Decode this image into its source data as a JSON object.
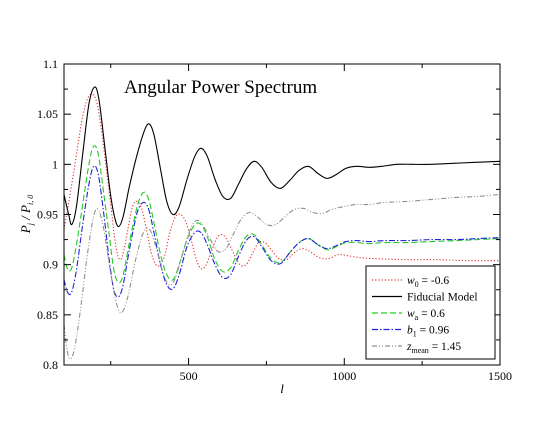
{
  "chart_data": {
    "type": "line",
    "title": "Angular Power Spectrum",
    "xlabel": "l",
    "ylabel": {
      "main": "P",
      "sub1": "j",
      "sep": " / ",
      "main2": "P",
      "sub2": "i, 0"
    },
    "xlim": [
      100,
      1500
    ],
    "ylim": [
      0.8,
      1.1
    ],
    "xticks": [
      500,
      1000,
      1500
    ],
    "yticks": [
      0.8,
      0.85,
      0.9,
      0.95,
      1,
      1.05,
      1.1
    ],
    "ytick_labels": [
      "0.8",
      "0.85",
      "0.9",
      "0.95",
      "1",
      "1.05",
      "1.1"
    ],
    "xtick_labels": [
      "500",
      "1000",
      "1500"
    ],
    "grid": false,
    "legend_position": "bottom-right",
    "series": [
      {
        "legend": {
          "sym": "w",
          "sub": "0",
          "rest": " = -0.6"
        },
        "color": "#e03030",
        "dash": "1.2,2",
        "points": [
          [
            100,
            0.935
          ],
          [
            115,
            0.962
          ],
          [
            130,
            0.99
          ],
          [
            145,
            1.02
          ],
          [
            160,
            1.048
          ],
          [
            175,
            1.065
          ],
          [
            190,
            1.07
          ],
          [
            205,
            1.062
          ],
          [
            220,
            1.035
          ],
          [
            235,
            0.998
          ],
          [
            250,
            0.96
          ],
          [
            262,
            0.928
          ],
          [
            272,
            0.91
          ],
          [
            282,
            0.905
          ],
          [
            292,
            0.914
          ],
          [
            305,
            0.935
          ],
          [
            320,
            0.958
          ],
          [
            335,
            0.963
          ],
          [
            350,
            0.955
          ],
          [
            365,
            0.935
          ],
          [
            380,
            0.912
          ],
          [
            395,
            0.9
          ],
          [
            410,
            0.9
          ],
          [
            425,
            0.911
          ],
          [
            440,
            0.932
          ],
          [
            458,
            0.948
          ],
          [
            475,
            0.95
          ],
          [
            492,
            0.942
          ],
          [
            508,
            0.925
          ],
          [
            525,
            0.905
          ],
          [
            540,
            0.896
          ],
          [
            555,
            0.899
          ],
          [
            572,
            0.912
          ],
          [
            590,
            0.926
          ],
          [
            608,
            0.93
          ],
          [
            625,
            0.924
          ],
          [
            645,
            0.911
          ],
          [
            665,
            0.9
          ],
          [
            685,
            0.9
          ],
          [
            705,
            0.911
          ],
          [
            725,
            0.922
          ],
          [
            745,
            0.922
          ],
          [
            765,
            0.915
          ],
          [
            790,
            0.906
          ],
          [
            815,
            0.905
          ],
          [
            840,
            0.912
          ],
          [
            865,
            0.916
          ],
          [
            890,
            0.913
          ],
          [
            920,
            0.907
          ],
          [
            950,
            0.906
          ],
          [
            980,
            0.91
          ],
          [
            1010,
            0.909
          ],
          [
            1050,
            0.907
          ],
          [
            1100,
            0.906
          ],
          [
            1200,
            0.905
          ],
          [
            1300,
            0.905
          ],
          [
            1400,
            0.904
          ],
          [
            1500,
            0.904
          ]
        ]
      },
      {
        "legend": {
          "sym": "",
          "sub": "",
          "rest": "Fiducial Model"
        },
        "color": "#000000",
        "dash": "",
        "points": [
          [
            100,
            0.97
          ],
          [
            115,
            0.95
          ],
          [
            125,
            0.94
          ],
          [
            140,
            0.958
          ],
          [
            160,
            1.01
          ],
          [
            180,
            1.06
          ],
          [
            198,
            1.077
          ],
          [
            212,
            1.065
          ],
          [
            230,
            1.02
          ],
          [
            248,
            0.973
          ],
          [
            262,
            0.948
          ],
          [
            275,
            0.938
          ],
          [
            290,
            0.948
          ],
          [
            310,
            0.978
          ],
          [
            335,
            1.01
          ],
          [
            360,
            1.035
          ],
          [
            375,
            1.04
          ],
          [
            390,
            1.028
          ],
          [
            410,
            0.995
          ],
          [
            430,
            0.963
          ],
          [
            450,
            0.95
          ],
          [
            470,
            0.958
          ],
          [
            495,
            0.985
          ],
          [
            520,
            1.008
          ],
          [
            540,
            1.016
          ],
          [
            560,
            1.008
          ],
          [
            585,
            0.985
          ],
          [
            610,
            0.968
          ],
          [
            635,
            0.966
          ],
          [
            660,
            0.98
          ],
          [
            685,
            0.995
          ],
          [
            710,
            1.003
          ],
          [
            735,
            0.997
          ],
          [
            765,
            0.982
          ],
          [
            795,
            0.976
          ],
          [
            825,
            0.984
          ],
          [
            855,
            0.994
          ],
          [
            885,
            0.998
          ],
          [
            915,
            0.991
          ],
          [
            945,
            0.986
          ],
          [
            975,
            0.99
          ],
          [
            1005,
            0.996
          ],
          [
            1040,
            0.998
          ],
          [
            1080,
            0.997
          ],
          [
            1120,
            0.998
          ],
          [
            1170,
            1.0
          ],
          [
            1220,
            1.0
          ],
          [
            1280,
            1.0
          ],
          [
            1350,
            1.001
          ],
          [
            1420,
            1.002
          ],
          [
            1500,
            1.003
          ]
        ]
      },
      {
        "legend": {
          "sym": "w",
          "sub": "a",
          "rest": " = 0.6"
        },
        "color": "#22cc22",
        "dash": "6,3",
        "points": [
          [
            100,
            0.91
          ],
          [
            112,
            0.895
          ],
          [
            125,
            0.897
          ],
          [
            140,
            0.92
          ],
          [
            160,
            0.96
          ],
          [
            180,
            1.0
          ],
          [
            195,
            1.018
          ],
          [
            210,
            1.01
          ],
          [
            228,
            0.97
          ],
          [
            245,
            0.93
          ],
          [
            260,
            0.895
          ],
          [
            275,
            0.882
          ],
          [
            290,
            0.89
          ],
          [
            310,
            0.922
          ],
          [
            335,
            0.958
          ],
          [
            355,
            0.972
          ],
          [
            372,
            0.965
          ],
          [
            390,
            0.94
          ],
          [
            410,
            0.91
          ],
          [
            430,
            0.89
          ],
          [
            450,
            0.885
          ],
          [
            470,
            0.9
          ],
          [
            495,
            0.925
          ],
          [
            520,
            0.94
          ],
          [
            540,
            0.94
          ],
          [
            560,
            0.928
          ],
          [
            585,
            0.905
          ],
          [
            610,
            0.893
          ],
          [
            635,
            0.897
          ],
          [
            660,
            0.914
          ],
          [
            685,
            0.928
          ],
          [
            710,
            0.93
          ],
          [
            735,
            0.92
          ],
          [
            765,
            0.906
          ],
          [
            795,
            0.902
          ],
          [
            825,
            0.912
          ],
          [
            855,
            0.922
          ],
          [
            885,
            0.926
          ],
          [
            915,
            0.92
          ],
          [
            945,
            0.915
          ],
          [
            975,
            0.918
          ],
          [
            1005,
            0.922
          ],
          [
            1040,
            0.922
          ],
          [
            1080,
            0.921
          ],
          [
            1130,
            0.922
          ],
          [
            1200,
            0.922
          ],
          [
            1280,
            0.923
          ],
          [
            1360,
            0.924
          ],
          [
            1430,
            0.925
          ],
          [
            1500,
            0.926
          ]
        ]
      },
      {
        "legend": {
          "sym": "b",
          "sub": "1",
          "rest": " = 0.96"
        },
        "color": "#2020dd",
        "dash": "6,2,1.5,2",
        "points": [
          [
            100,
            0.885
          ],
          [
            112,
            0.872
          ],
          [
            125,
            0.873
          ],
          [
            140,
            0.895
          ],
          [
            160,
            0.94
          ],
          [
            180,
            0.98
          ],
          [
            195,
            0.998
          ],
          [
            210,
            0.99
          ],
          [
            228,
            0.95
          ],
          [
            245,
            0.905
          ],
          [
            260,
            0.875
          ],
          [
            275,
            0.868
          ],
          [
            290,
            0.88
          ],
          [
            310,
            0.915
          ],
          [
            335,
            0.952
          ],
          [
            355,
            0.962
          ],
          [
            372,
            0.955
          ],
          [
            390,
            0.93
          ],
          [
            410,
            0.9
          ],
          [
            430,
            0.88
          ],
          [
            450,
            0.876
          ],
          [
            470,
            0.89
          ],
          [
            495,
            0.918
          ],
          [
            520,
            0.932
          ],
          [
            540,
            0.932
          ],
          [
            560,
            0.92
          ],
          [
            585,
            0.9
          ],
          [
            610,
            0.887
          ],
          [
            635,
            0.89
          ],
          [
            660,
            0.908
          ],
          [
            685,
            0.924
          ],
          [
            710,
            0.928
          ],
          [
            735,
            0.918
          ],
          [
            765,
            0.904
          ],
          [
            795,
            0.901
          ],
          [
            825,
            0.912
          ],
          [
            855,
            0.922
          ],
          [
            885,
            0.926
          ],
          [
            915,
            0.92
          ],
          [
            945,
            0.916
          ],
          [
            975,
            0.919
          ],
          [
            1005,
            0.923
          ],
          [
            1040,
            0.924
          ],
          [
            1080,
            0.923
          ],
          [
            1130,
            0.924
          ],
          [
            1200,
            0.924
          ],
          [
            1280,
            0.925
          ],
          [
            1360,
            0.925
          ],
          [
            1430,
            0.926
          ],
          [
            1500,
            0.927
          ]
        ]
      },
      {
        "legend": {
          "sym": "z",
          "sub": "mean",
          "rest": " = 1.45"
        },
        "color": "#909090",
        "dash": "5,2,1,2,1,2",
        "points": [
          [
            100,
            0.84
          ],
          [
            110,
            0.815
          ],
          [
            120,
            0.806
          ],
          [
            135,
            0.818
          ],
          [
            155,
            0.86
          ],
          [
            175,
            0.91
          ],
          [
            195,
            0.948
          ],
          [
            210,
            0.955
          ],
          [
            228,
            0.935
          ],
          [
            248,
            0.895
          ],
          [
            268,
            0.862
          ],
          [
            285,
            0.852
          ],
          [
            305,
            0.868
          ],
          [
            330,
            0.905
          ],
          [
            355,
            0.932
          ],
          [
            375,
            0.935
          ],
          [
            395,
            0.918
          ],
          [
            415,
            0.895
          ],
          [
            435,
            0.88
          ],
          [
            455,
            0.885
          ],
          [
            480,
            0.91
          ],
          [
            505,
            0.935
          ],
          [
            525,
            0.944
          ],
          [
            545,
            0.94
          ],
          [
            570,
            0.925
          ],
          [
            595,
            0.913
          ],
          [
            620,
            0.916
          ],
          [
            645,
            0.931
          ],
          [
            670,
            0.946
          ],
          [
            695,
            0.952
          ],
          [
            720,
            0.948
          ],
          [
            750,
            0.94
          ],
          [
            780,
            0.94
          ],
          [
            810,
            0.948
          ],
          [
            840,
            0.955
          ],
          [
            870,
            0.956
          ],
          [
            900,
            0.952
          ],
          [
            930,
            0.951
          ],
          [
            960,
            0.955
          ],
          [
            1000,
            0.958
          ],
          [
            1040,
            0.96
          ],
          [
            1080,
            0.96
          ],
          [
            1130,
            0.962
          ],
          [
            1200,
            0.963
          ],
          [
            1280,
            0.965
          ],
          [
            1360,
            0.967
          ],
          [
            1430,
            0.968
          ],
          [
            1500,
            0.97
          ]
        ]
      }
    ]
  }
}
